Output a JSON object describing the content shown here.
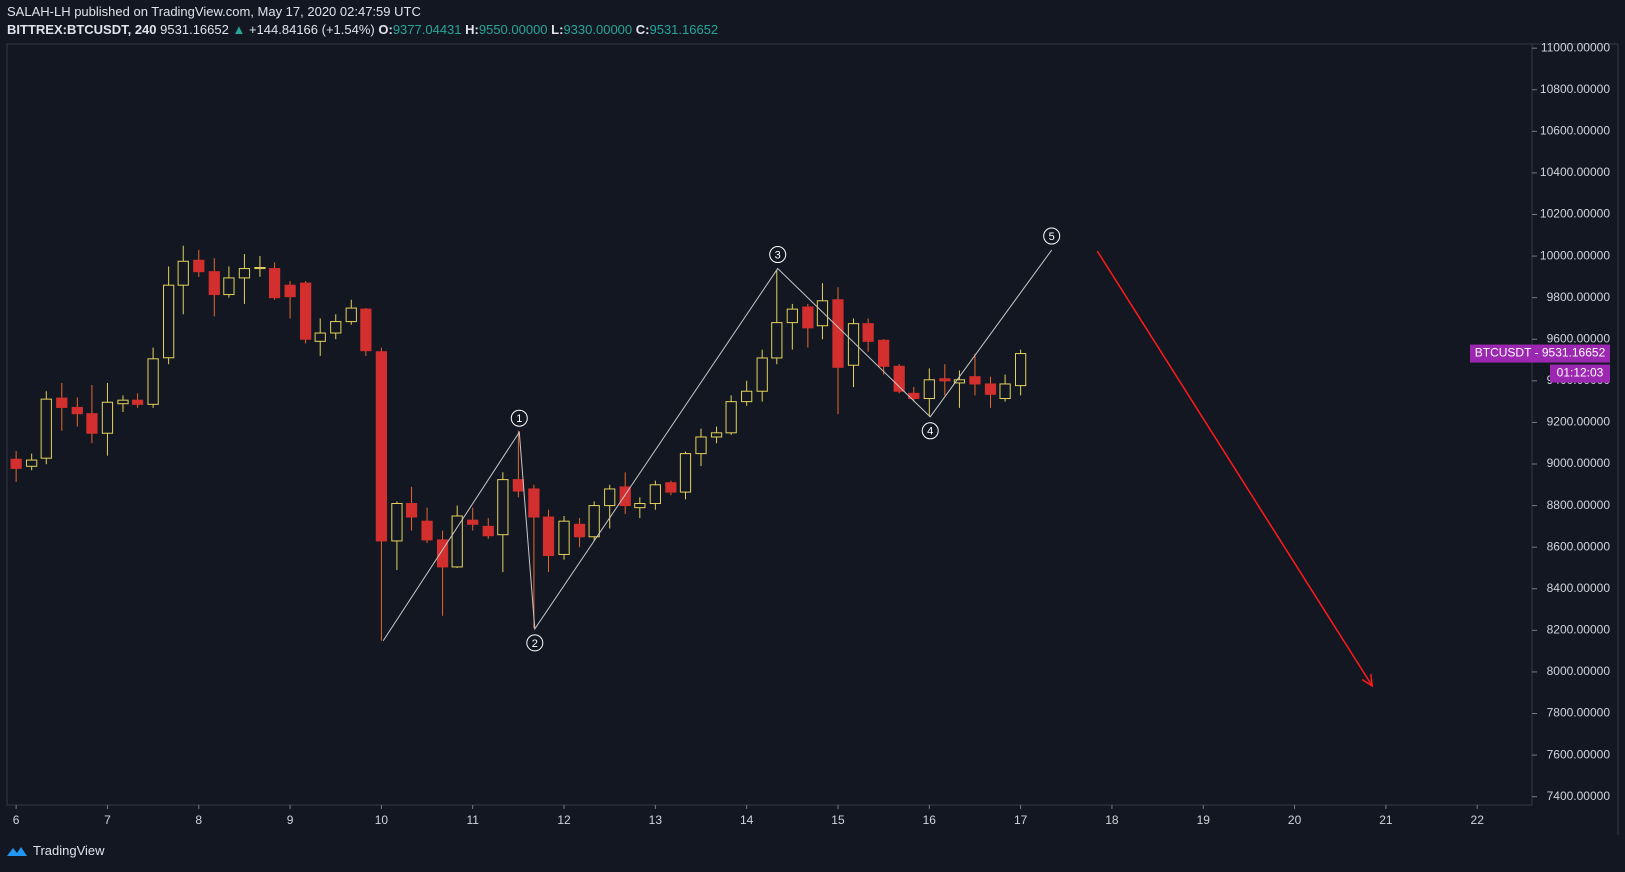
{
  "header": {
    "publisher": "SALAH-LH published on TradingView.com, May 17, 2020 02:47:59 UTC",
    "symbol": "BITTREX:BTCUSDT, 240",
    "last": "9531.16652",
    "change_arrow": "▲",
    "change": "+144.84166 (+1.54%)",
    "o_label": "O:",
    "o_value": "9377.04431",
    "h_label": "H:",
    "h_value": "9550.00000",
    "l_label": "L:",
    "l_value": "9330.00000",
    "c_label": "C:",
    "c_value": "9531.16652"
  },
  "chart_data": {
    "type": "candlestick",
    "x": [
      6,
      6.17,
      6.33,
      6.5,
      6.67,
      6.83,
      7,
      7.17,
      7.33,
      7.5,
      7.67,
      7.83,
      8,
      8.17,
      8.33,
      8.5,
      8.67,
      8.83,
      9,
      9.17,
      9.33,
      9.5,
      9.67,
      9.83,
      10,
      10.17,
      10.33,
      10.5,
      10.67,
      10.83,
      11,
      11.17,
      11.33,
      11.5,
      11.67,
      11.83,
      12,
      12.17,
      12.33,
      12.5,
      12.67,
      12.83,
      13,
      13.17,
      13.33,
      13.5,
      13.67,
      13.83,
      14,
      14.17,
      14.33,
      14.5,
      14.67,
      14.83,
      15,
      15.17,
      15.33,
      15.5,
      15.67,
      15.83,
      16,
      16.17,
      16.33,
      16.5,
      16.67,
      16.83,
      17
    ],
    "open": [
      9023,
      8989,
      9028,
      9317,
      9272,
      9242,
      9148,
      9290,
      9307,
      9287,
      9511,
      9860,
      9980,
      9925,
      9815,
      9895,
      9940,
      9940,
      9860,
      9870,
      9590,
      9630,
      9685,
      9745,
      9540,
      8630,
      8810,
      8725,
      8635,
      8505,
      8730,
      8700,
      8660,
      8925,
      8880,
      8745,
      8565,
      8710,
      8650,
      8800,
      8890,
      8790,
      8810,
      8910,
      8865,
      9050,
      9130,
      9150,
      9300,
      9350,
      9510,
      9680,
      9755,
      9665,
      9790,
      9475,
      9675,
      9595,
      9470,
      9340,
      9315,
      9410,
      9390,
      9420,
      9385,
      9315,
      9377.04431
    ],
    "high": [
      9063,
      9050,
      9350,
      9390,
      9320,
      9380,
      9390,
      9330,
      9340,
      9560,
      9950,
      10050,
      10030,
      9990,
      9950,
      10010,
      10000,
      9970,
      9880,
      9880,
      9700,
      9720,
      9790,
      9750,
      9560,
      8820,
      8890,
      8790,
      8680,
      8800,
      8790,
      8740,
      8960,
      9160,
      8900,
      8780,
      8750,
      8740,
      8820,
      8900,
      8960,
      8840,
      8920,
      8920,
      9060,
      9170,
      9180,
      9330,
      9400,
      9550,
      9930,
      9770,
      9770,
      9870,
      9850,
      9700,
      9700,
      9600,
      9480,
      9370,
      9460,
      9480,
      9450,
      9530,
      9420,
      9430,
      9550
    ],
    "low": [
      8914,
      8970,
      8999,
      9160,
      9180,
      9100,
      9040,
      9250,
      9270,
      9270,
      9480,
      9720,
      9900,
      9710,
      9800,
      9770,
      9900,
      9790,
      9700,
      9580,
      9520,
      9600,
      9670,
      9520,
      8150,
      8490,
      8680,
      8620,
      8270,
      8500,
      8680,
      8640,
      8480,
      8840,
      8210,
      8480,
      8540,
      8600,
      8630,
      8690,
      8760,
      8740,
      8780,
      8850,
      8830,
      8990,
      9100,
      9140,
      9280,
      9300,
      9480,
      9550,
      9560,
      9600,
      9240,
      9370,
      9540,
      9430,
      9340,
      9300,
      9230,
      9330,
      9270,
      9330,
      9270,
      9300,
      9330
    ],
    "close": [
      8979,
      9019,
      9312,
      9272,
      9242,
      9148,
      9297,
      9307,
      9287,
      9506,
      9860,
      9975,
      9925,
      9815,
      9895,
      9940,
      9945,
      9800,
      9805,
      9600,
      9630,
      9685,
      9750,
      9545,
      8630,
      8810,
      8745,
      8635,
      8505,
      8750,
      8710,
      8655,
      8925,
      8870,
      8745,
      8560,
      8725,
      8650,
      8800,
      8880,
      8800,
      8810,
      8900,
      8865,
      9050,
      9130,
      9150,
      9300,
      9350,
      9510,
      9680,
      9745,
      9655,
      9785,
      9465,
      9675,
      9590,
      9470,
      9350,
      9315,
      9405,
      9400,
      9405,
      9385,
      9335,
      9385,
      9531.16652
    ],
    "up_color": "#e3d25a",
    "down_color": "#d32f2f",
    "xlim": [
      5.9,
      22.6
    ],
    "xticks": [
      6,
      7,
      8,
      9,
      10,
      11,
      12,
      13,
      14,
      15,
      16,
      17,
      18,
      19,
      20,
      21,
      22
    ],
    "ylim": [
      7360,
      11020
    ],
    "yticks": [
      {
        "value": 7400,
        "label": "7400.00000"
      },
      {
        "value": 7600,
        "label": "7600.00000"
      },
      {
        "value": 7800,
        "label": "7800.00000"
      },
      {
        "value": 8000,
        "label": "8000.00000"
      },
      {
        "value": 8200,
        "label": "8200.00000"
      },
      {
        "value": 8400,
        "label": "8400.00000"
      },
      {
        "value": 8600,
        "label": "8600.00000"
      },
      {
        "value": 8800,
        "label": "8800.00000"
      },
      {
        "value": 9000,
        "label": "9000.00000"
      },
      {
        "value": 9200,
        "label": "9200.00000"
      },
      {
        "value": 9400,
        "label": "9400.00000"
      },
      {
        "value": 9600,
        "label": "9600.00000"
      },
      {
        "value": 9800,
        "label": "9800.00000"
      },
      {
        "value": 10000,
        "label": "10000.00000"
      },
      {
        "value": 10200,
        "label": "10200.00000"
      },
      {
        "value": 10400,
        "label": "10400.00000"
      },
      {
        "value": 10600,
        "label": "10600.00000"
      },
      {
        "value": 10800,
        "label": "10800.00000"
      },
      {
        "value": 11000,
        "label": "11000.00000"
      }
    ],
    "grid": false,
    "price_label": "BTCUSDT - 9531.16652",
    "countdown": "01:12:03",
    "price_label_color": "#9c27b0",
    "waves": {
      "x": [
        10.02,
        11.51,
        11.68,
        14.34,
        16.01,
        17.34
      ],
      "y": [
        8150,
        9153,
        8207,
        9940,
        9227,
        10029
      ],
      "labels": [
        null,
        "1",
        "2",
        "3",
        "4",
        "5"
      ],
      "color": "#c8c8c8"
    },
    "arrow": {
      "x": [
        17.84,
        20.85
      ],
      "y": [
        10024,
        7933
      ],
      "color": "#ff1a1a"
    }
  },
  "footer": {
    "brand": "TradingView"
  }
}
